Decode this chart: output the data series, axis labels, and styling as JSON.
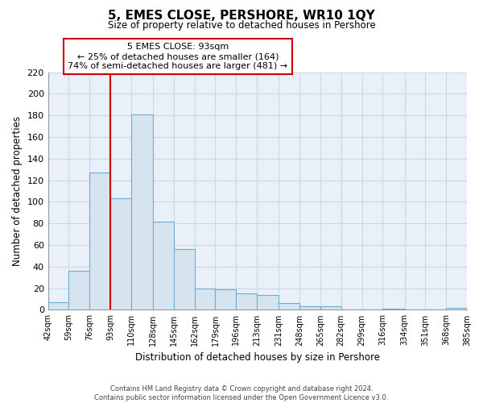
{
  "title": "5, EMES CLOSE, PERSHORE, WR10 1QY",
  "subtitle": "Size of property relative to detached houses in Pershore",
  "xlabel": "Distribution of detached houses by size in Pershore",
  "ylabel": "Number of detached properties",
  "bar_edges": [
    42,
    59,
    76,
    93,
    110,
    128,
    145,
    162,
    179,
    196,
    213,
    231,
    248,
    265,
    282,
    299,
    316,
    334,
    351,
    368,
    385
  ],
  "bar_heights": [
    7,
    36,
    127,
    103,
    181,
    82,
    56,
    20,
    19,
    15,
    14,
    6,
    3,
    3,
    0,
    0,
    1,
    0,
    0,
    2
  ],
  "bar_color": "#d6e4f0",
  "bar_edge_color": "#6aaed6",
  "vline_x": 93,
  "vline_color": "#cc0000",
  "ylim": [
    0,
    220
  ],
  "yticks": [
    0,
    20,
    40,
    60,
    80,
    100,
    120,
    140,
    160,
    180,
    200,
    220
  ],
  "annotation_title": "5 EMES CLOSE: 93sqm",
  "annotation_line1": "← 25% of detached houses are smaller (164)",
  "annotation_line2": "74% of semi-detached houses are larger (481) →",
  "footer_line1": "Contains HM Land Registry data © Crown copyright and database right 2024.",
  "footer_line2": "Contains public sector information licensed under the Open Government Licence v3.0.",
  "tick_labels": [
    "42sqm",
    "59sqm",
    "76sqm",
    "93sqm",
    "110sqm",
    "128sqm",
    "145sqm",
    "162sqm",
    "179sqm",
    "196sqm",
    "213sqm",
    "231sqm",
    "248sqm",
    "265sqm",
    "282sqm",
    "299sqm",
    "316sqm",
    "334sqm",
    "351sqm",
    "368sqm",
    "385sqm"
  ],
  "background_color": "#ffffff",
  "plot_bg_color": "#eaf0f8",
  "grid_color": "#c8d8e8"
}
